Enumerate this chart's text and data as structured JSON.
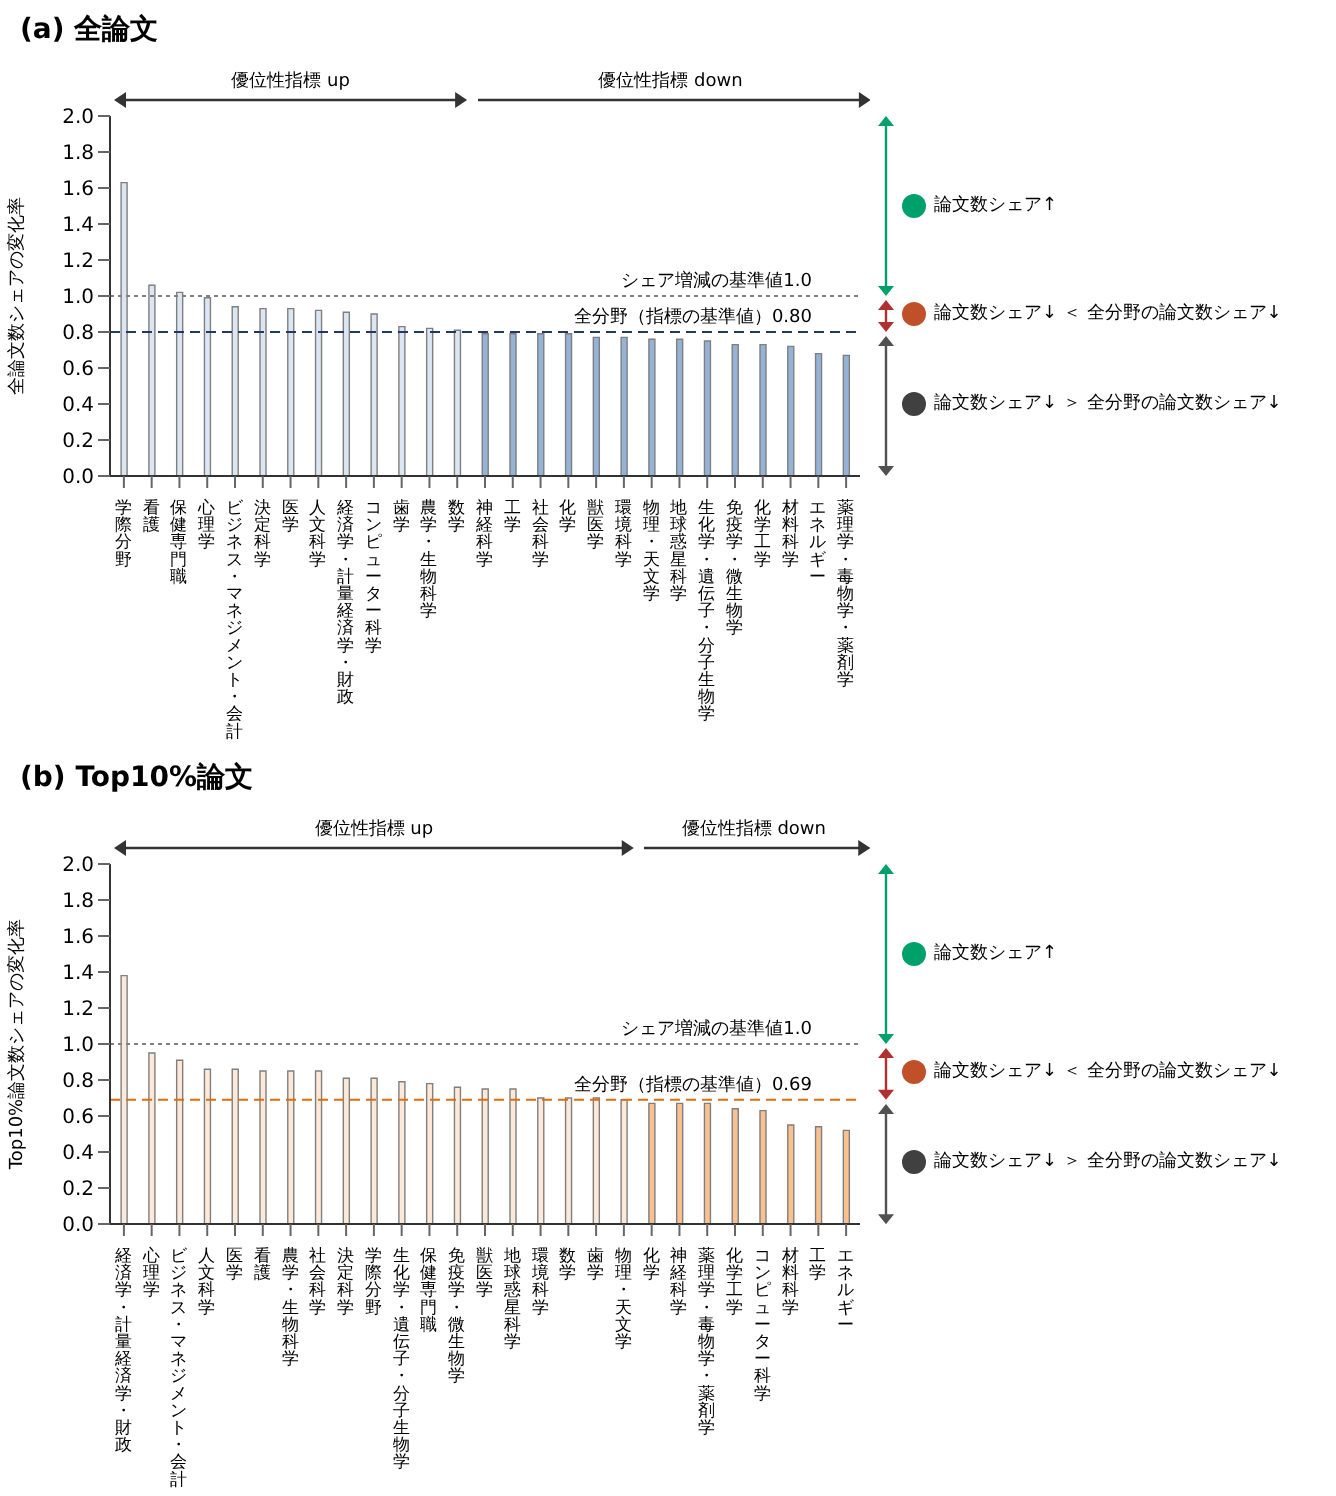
{
  "chart_data": [
    {
      "type": "bar",
      "title": "(a) 全論文",
      "ylabel": "全論文数シェアの変化率",
      "categories": [
        "学際分野",
        "看護",
        "保健専門職",
        "心理学",
        "ビジネス・マネジメント・会計",
        "決定科学",
        "医学",
        "人文科学",
        "経済学・計量経済学・財政",
        "コンピューター科学",
        "歯学",
        "農学・生物科学",
        "数学",
        "神経科学",
        "工学",
        "社会科学",
        "化学",
        "獣医学",
        "環境科学",
        "物理・天文学",
        "地球惑星科学",
        "生化学・遺伝子・分子生物学",
        "免疫学・微生物学",
        "化学工学",
        "材料科学",
        "エネルギー",
        "薬理学・毒物学・薬剤学"
      ],
      "values": [
        1.63,
        1.06,
        1.02,
        0.99,
        0.94,
        0.93,
        0.93,
        0.92,
        0.91,
        0.9,
        0.83,
        0.82,
        0.81,
        0.79,
        0.79,
        0.79,
        0.79,
        0.77,
        0.77,
        0.76,
        0.76,
        0.75,
        0.73,
        0.73,
        0.72,
        0.68,
        0.67
      ],
      "colors": [
        "#dce6f2",
        "#dce6f2",
        "#dce6f2",
        "#dce6f2",
        "#dce6f2",
        "#dce6f2",
        "#dce6f2",
        "#dce6f2",
        "#dce6f2",
        "#dce6f2",
        "#dce6f2",
        "#dce6f2",
        "#dce6f2",
        "#95b3d7",
        "#95b3d7",
        "#95b3d7",
        "#95b3d7",
        "#95b3d7",
        "#95b3d7",
        "#95b3d7",
        "#95b3d7",
        "#95b3d7",
        "#95b3d7",
        "#95b3d7",
        "#95b3d7",
        "#95b3d7",
        "#95b3d7"
      ],
      "ylim": [
        0,
        2
      ],
      "yticks": [
        {
          "value": 0,
          "label": "0.0"
        },
        {
          "value": 0.2,
          "label": "0.2"
        },
        {
          "value": 0.4,
          "label": "0.4"
        },
        {
          "value": 0.6,
          "label": "0.6"
        },
        {
          "value": 0.8,
          "label": "0.8"
        },
        {
          "value": 1,
          "label": "1.0"
        },
        {
          "value": 1.2,
          "label": "1.2"
        },
        {
          "value": 1.4,
          "label": "1.4"
        },
        {
          "value": 1.6,
          "label": "1.6"
        },
        {
          "value": 1.8,
          "label": "1.8"
        },
        {
          "value": 2,
          "label": "2.0"
        }
      ],
      "ref_lines": [
        {
          "axis": "y",
          "value": 1.0,
          "label": "シェア増減の基準値1.0",
          "color": "#808080",
          "line_style": "dotted"
        },
        {
          "axis": "y",
          "value": 0.8,
          "label": "全分野（指標の基準値）0.80",
          "color": "#1f3864",
          "line_style": "dashed"
        }
      ],
      "annotations": [
        "優位性指標 up",
        "優位性指標 down",
        "論文数シェア↑",
        "論文数シェア↓ ＜ 全分野の論文数シェア↓",
        "論文数シェア↓ ＞ 全分野の論文数シェア↓"
      ]
    },
    {
      "type": "bar",
      "title": "(b) Top10%論文",
      "ylabel": "Top10%論文数シェアの変化率",
      "categories": [
        "経済学・計量経済学・財政",
        "心理学",
        "ビジネス・マネジメント・会計",
        "人文科学",
        "医学",
        "看護",
        "農学・生物科学",
        "社会科学",
        "決定科学",
        "学際分野",
        "生化学・遺伝子・分子生物学",
        "保健専門職",
        "免疫学・微生物学",
        "獣医学",
        "地球惑星科学",
        "環境科学",
        "数学",
        "歯学",
        "物理・天文学",
        "化学",
        "神経科学",
        "薬理学・毒物学・薬剤学",
        "化学工学",
        "コンピューター科学",
        "材料科学",
        "工学",
        "エネルギー"
      ],
      "values": [
        1.38,
        0.95,
        0.91,
        0.86,
        0.86,
        0.85,
        0.85,
        0.85,
        0.81,
        0.81,
        0.79,
        0.78,
        0.76,
        0.75,
        0.75,
        0.7,
        0.7,
        0.7,
        0.69,
        0.67,
        0.67,
        0.67,
        0.64,
        0.63,
        0.55,
        0.54,
        0.52
      ],
      "colors": [
        "#fde9d9",
        "#fde9d9",
        "#fde9d9",
        "#fde9d9",
        "#fde9d9",
        "#fde9d9",
        "#fde9d9",
        "#fde9d9",
        "#fde9d9",
        "#fde9d9",
        "#fde9d9",
        "#fde9d9",
        "#fde9d9",
        "#fde9d9",
        "#fde9d9",
        "#fde9d9",
        "#fde9d9",
        "#fde9d9",
        "#fde9d9",
        "#fac090",
        "#fac090",
        "#fac090",
        "#fac090",
        "#fac090",
        "#fac090",
        "#fac090",
        "#fac090"
      ],
      "ylim": [
        0,
        2
      ],
      "yticks": [
        {
          "value": 0,
          "label": "0.0"
        },
        {
          "value": 0.2,
          "label": "0.2"
        },
        {
          "value": 0.4,
          "label": "0.4"
        },
        {
          "value": 0.6,
          "label": "0.6"
        },
        {
          "value": 0.8,
          "label": "0.8"
        },
        {
          "value": 1,
          "label": "1.0"
        },
        {
          "value": 1.2,
          "label": "1.2"
        },
        {
          "value": 1.4,
          "label": "1.4"
        },
        {
          "value": 1.6,
          "label": "1.6"
        },
        {
          "value": 1.8,
          "label": "1.8"
        },
        {
          "value": 2,
          "label": "2.0"
        }
      ],
      "ref_lines": [
        {
          "axis": "y",
          "value": 1.0,
          "label": "シェア増減の基準値1.0",
          "color": "#808080",
          "line_style": "dotted"
        },
        {
          "axis": "y",
          "value": 0.69,
          "label": "全分野（指標の基準値）0.69",
          "color": "#e46c0a",
          "line_style": "dashed"
        }
      ],
      "annotations": [
        "優位性指標 up",
        "優位性指標 down",
        "論文数シェア↑",
        "論文数シェア↓ ＜ 全分野の論文数シェア↓",
        "論文数シェア↓ ＞ 全分野の論文数シェア↓"
      ]
    }
  ]
}
